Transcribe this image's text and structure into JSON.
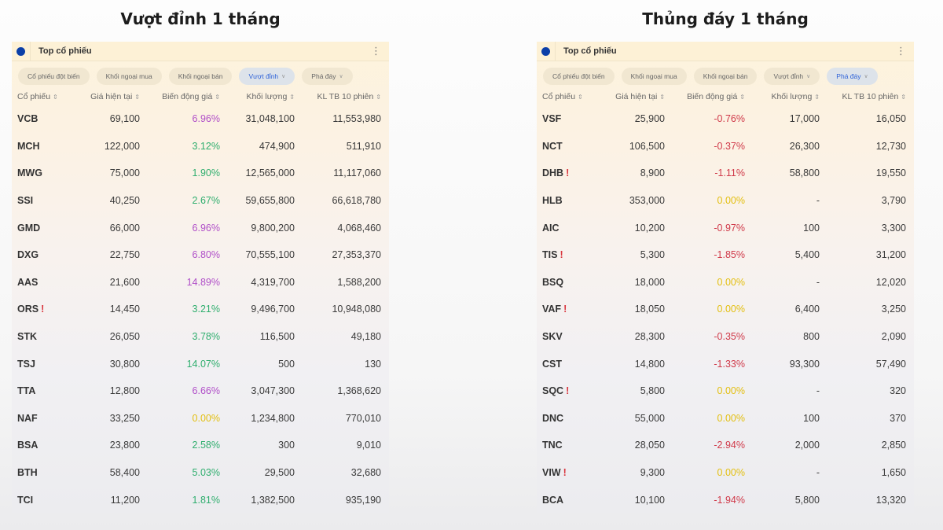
{
  "left": {
    "title": "Vượt đỉnh 1 tháng",
    "panel_title": "Top cổ phiếu",
    "menu_icon": "kebab-menu-icon",
    "chips": [
      {
        "label": "Cổ phiếu đột biến",
        "active": false,
        "dropdown": false
      },
      {
        "label": "Khối ngoại mua",
        "active": false,
        "dropdown": false
      },
      {
        "label": "Khối ngoại bán",
        "active": false,
        "dropdown": false
      },
      {
        "label": "Vượt đỉnh",
        "active": true,
        "dropdown": true
      },
      {
        "label": "Phá đáy",
        "active": false,
        "dropdown": true
      }
    ],
    "columns": [
      "Cổ phiếu",
      "Giá hiện tại",
      "Biến động giá",
      "Khối lượng",
      "KL TB 10 phiên"
    ],
    "rows": [
      {
        "ticker": "VCB",
        "warn": false,
        "price": "69,100",
        "change": "6.96%",
        "tone": "ceil",
        "volume": "31,048,100",
        "avg10": "11,553,980"
      },
      {
        "ticker": "MCH",
        "warn": false,
        "price": "122,000",
        "change": "3.12%",
        "tone": "up",
        "volume": "474,900",
        "avg10": "511,910"
      },
      {
        "ticker": "MWG",
        "warn": false,
        "price": "75,000",
        "change": "1.90%",
        "tone": "up",
        "volume": "12,565,000",
        "avg10": "11,117,060"
      },
      {
        "ticker": "SSI",
        "warn": false,
        "price": "40,250",
        "change": "2.67%",
        "tone": "up",
        "volume": "59,655,800",
        "avg10": "66,618,780"
      },
      {
        "ticker": "GMD",
        "warn": false,
        "price": "66,000",
        "change": "6.96%",
        "tone": "ceil",
        "volume": "9,800,200",
        "avg10": "4,068,460"
      },
      {
        "ticker": "DXG",
        "warn": false,
        "price": "22,750",
        "change": "6.80%",
        "tone": "ceil",
        "volume": "70,555,100",
        "avg10": "27,353,370"
      },
      {
        "ticker": "AAS",
        "warn": false,
        "price": "21,600",
        "change": "14.89%",
        "tone": "ceil",
        "volume": "4,319,700",
        "avg10": "1,588,200"
      },
      {
        "ticker": "ORS",
        "warn": true,
        "price": "14,450",
        "change": "3.21%",
        "tone": "up",
        "volume": "9,496,700",
        "avg10": "10,948,080"
      },
      {
        "ticker": "STK",
        "warn": false,
        "price": "26,050",
        "change": "3.78%",
        "tone": "up",
        "volume": "116,500",
        "avg10": "49,180"
      },
      {
        "ticker": "TSJ",
        "warn": false,
        "price": "30,800",
        "change": "14.07%",
        "tone": "up",
        "volume": "500",
        "avg10": "130"
      },
      {
        "ticker": "TTA",
        "warn": false,
        "price": "12,800",
        "change": "6.66%",
        "tone": "ceil",
        "volume": "3,047,300",
        "avg10": "1,368,620"
      },
      {
        "ticker": "NAF",
        "warn": false,
        "price": "33,250",
        "change": "0.00%",
        "tone": "ref",
        "volume": "1,234,800",
        "avg10": "770,010"
      },
      {
        "ticker": "BSA",
        "warn": false,
        "price": "23,800",
        "change": "2.58%",
        "tone": "up",
        "volume": "300",
        "avg10": "9,010"
      },
      {
        "ticker": "BTH",
        "warn": false,
        "price": "58,400",
        "change": "5.03%",
        "tone": "up",
        "volume": "29,500",
        "avg10": "32,680"
      },
      {
        "ticker": "TCI",
        "warn": false,
        "price": "11,200",
        "change": "1.81%",
        "tone": "up",
        "volume": "1,382,500",
        "avg10": "935,190"
      }
    ]
  },
  "right": {
    "title": "Thủng đáy 1 tháng",
    "panel_title": "Top cổ phiếu",
    "menu_icon": "kebab-menu-icon",
    "chips": [
      {
        "label": "Cổ phiếu đột biến",
        "active": false,
        "dropdown": false
      },
      {
        "label": "Khối ngoại mua",
        "active": false,
        "dropdown": false
      },
      {
        "label": "Khối ngoại bán",
        "active": false,
        "dropdown": false
      },
      {
        "label": "Vượt đỉnh",
        "active": false,
        "dropdown": true
      },
      {
        "label": "Phá đáy",
        "active": true,
        "dropdown": true
      }
    ],
    "columns": [
      "Cổ phiếu",
      "Giá hiện tại",
      "Biến động giá",
      "Khối lượng",
      "KL TB 10 phiên"
    ],
    "rows": [
      {
        "ticker": "VSF",
        "warn": false,
        "price": "25,900",
        "change": "-0.76%",
        "tone": "down",
        "volume": "17,000",
        "avg10": "16,050"
      },
      {
        "ticker": "NCT",
        "warn": false,
        "price": "106,500",
        "change": "-0.37%",
        "tone": "down",
        "volume": "26,300",
        "avg10": "12,730"
      },
      {
        "ticker": "DHB",
        "warn": true,
        "price": "8,900",
        "change": "-1.11%",
        "tone": "down",
        "volume": "58,800",
        "avg10": "19,550"
      },
      {
        "ticker": "HLB",
        "warn": false,
        "price": "353,000",
        "change": "0.00%",
        "tone": "ref",
        "volume": "-",
        "avg10": "3,790"
      },
      {
        "ticker": "AIC",
        "warn": false,
        "price": "10,200",
        "change": "-0.97%",
        "tone": "down",
        "volume": "100",
        "avg10": "3,300"
      },
      {
        "ticker": "TIS",
        "warn": true,
        "price": "5,300",
        "change": "-1.85%",
        "tone": "down",
        "volume": "5,400",
        "avg10": "31,200"
      },
      {
        "ticker": "BSQ",
        "warn": false,
        "price": "18,000",
        "change": "0.00%",
        "tone": "ref",
        "volume": "-",
        "avg10": "12,020"
      },
      {
        "ticker": "VAF",
        "warn": true,
        "price": "18,050",
        "change": "0.00%",
        "tone": "ref",
        "volume": "6,400",
        "avg10": "3,250"
      },
      {
        "ticker": "SKV",
        "warn": false,
        "price": "28,300",
        "change": "-0.35%",
        "tone": "down",
        "volume": "800",
        "avg10": "2,090"
      },
      {
        "ticker": "CST",
        "warn": false,
        "price": "14,800",
        "change": "-1.33%",
        "tone": "down",
        "volume": "93,300",
        "avg10": "57,490"
      },
      {
        "ticker": "SQC",
        "warn": true,
        "price": "5,800",
        "change": "0.00%",
        "tone": "ref",
        "volume": "-",
        "avg10": "320"
      },
      {
        "ticker": "DNC",
        "warn": false,
        "price": "55,000",
        "change": "0.00%",
        "tone": "ref",
        "volume": "100",
        "avg10": "370"
      },
      {
        "ticker": "TNC",
        "warn": false,
        "price": "28,050",
        "change": "-2.94%",
        "tone": "down",
        "volume": "2,000",
        "avg10": "2,850"
      },
      {
        "ticker": "VIW",
        "warn": true,
        "price": "9,300",
        "change": "0.00%",
        "tone": "ref",
        "volume": "-",
        "avg10": "1,650"
      },
      {
        "ticker": "BCA",
        "warn": false,
        "price": "10,100",
        "change": "-1.94%",
        "tone": "down",
        "volume": "5,800",
        "avg10": "13,320"
      }
    ]
  },
  "symbols": {
    "sort": "⇕",
    "chevron": "∨",
    "warn": "!",
    "kebab": "⋮"
  },
  "colors": {
    "ceiling": "#b04fc8",
    "up": "#2fae6e",
    "reference": "#e3bf10",
    "down": "#d03a4a",
    "active_chip_text": "#2e62d8",
    "brand_dot": "#0b3fa8"
  }
}
